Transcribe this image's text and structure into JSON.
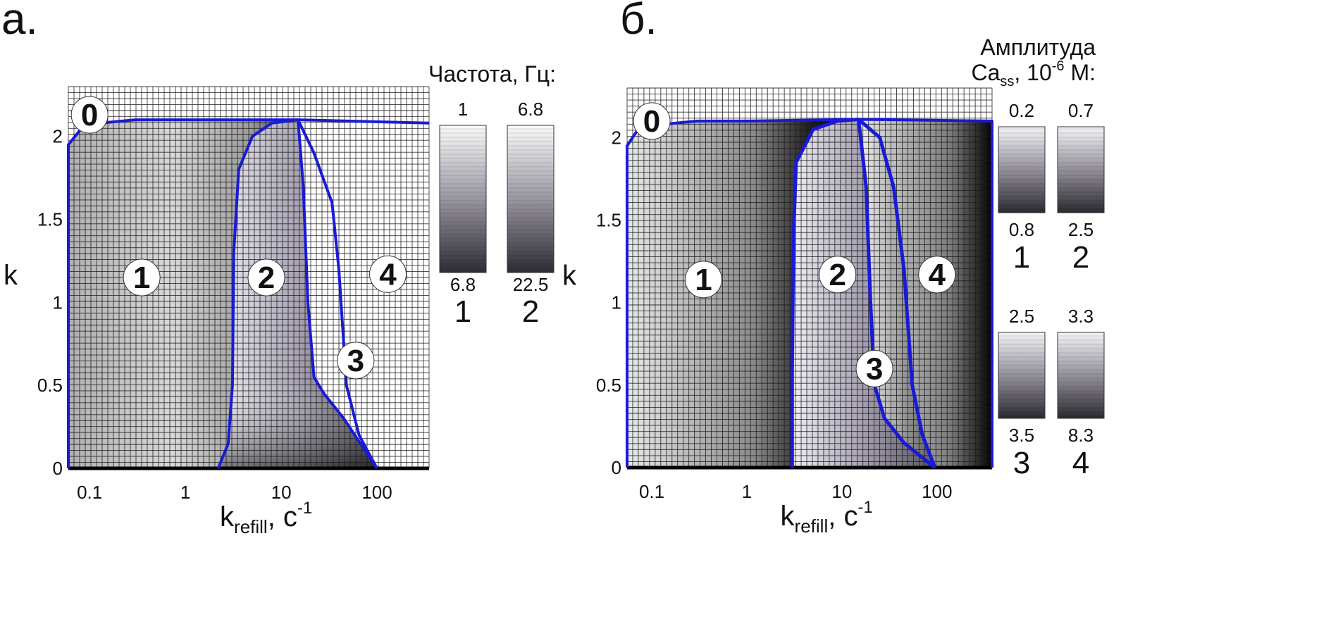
{
  "chart_data": [
    {
      "type": "heatmap",
      "panel_label": "а.",
      "xlabel_main": "k",
      "xlabel_sub": "refill",
      "xlabel_unit": ", с",
      "xlabel_unit_sup": "-1",
      "ylabel": "k",
      "x_scale": "log",
      "xlim": [
        0.06,
        350
      ],
      "ylim": [
        0,
        2.3
      ],
      "x_ticks": [
        {
          "v": 0.1,
          "l": "0.1"
        },
        {
          "v": 1,
          "l": "1"
        },
        {
          "v": 10,
          "l": "10"
        },
        {
          "v": 100,
          "l": "100"
        }
      ],
      "y_ticks": [
        {
          "v": 0,
          "l": "0"
        },
        {
          "v": 0.5,
          "l": "0.5"
        },
        {
          "v": 1,
          "l": "1"
        },
        {
          "v": 1.5,
          "l": "1.5"
        },
        {
          "v": 2,
          "l": "2"
        }
      ],
      "grid": true,
      "regions": [
        {
          "label": "0",
          "x": 0.1,
          "y": 2.13
        },
        {
          "label": "1",
          "x": 0.35,
          "y": 1.15
        },
        {
          "label": "2",
          "x": 7,
          "y": 1.15
        },
        {
          "label": "3",
          "x": 60,
          "y": 0.65
        },
        {
          "label": "4",
          "x": 130,
          "y": 1.17
        }
      ],
      "boundaries": [
        {
          "name": "outer",
          "points": [
            [
              0.06,
              0
            ],
            [
              0.06,
              1.95
            ],
            [
              0.08,
              2.04
            ],
            [
              0.13,
              2.08
            ],
            [
              0.3,
              2.1
            ],
            [
              1,
              2.1
            ],
            [
              15,
              2.1
            ],
            [
              350,
              2.08
            ]
          ]
        },
        {
          "name": "1-2",
          "points": [
            [
              2.2,
              0
            ],
            [
              2.8,
              0.15
            ],
            [
              3.1,
              0.5
            ],
            [
              3.2,
              1.3
            ],
            [
              3.6,
              1.8
            ],
            [
              5,
              2.0
            ],
            [
              8,
              2.08
            ],
            [
              15,
              2.1
            ]
          ]
        },
        {
          "name": "2-3",
          "points": [
            [
              15,
              2.1
            ],
            [
              17,
              1.7
            ],
            [
              19,
              1.0
            ],
            [
              22,
              0.55
            ],
            [
              28,
              0.45
            ],
            [
              45,
              0.3
            ],
            [
              100,
              0
            ]
          ]
        },
        {
          "name": "3-4",
          "points": [
            [
              15,
              2.1
            ],
            [
              22,
              1.9
            ],
            [
              34,
              1.6
            ],
            [
              40,
              1.2
            ],
            [
              48,
              0.5
            ],
            [
              65,
              0.2
            ],
            [
              100,
              0
            ]
          ]
        }
      ],
      "legend_title": "Частота, Гц:",
      "legend": [
        {
          "name": "1",
          "top": "1",
          "bottom": "6.8"
        },
        {
          "name": "2",
          "top": "6.8",
          "bottom": "22.5"
        }
      ]
    },
    {
      "type": "heatmap",
      "panel_label": "б.",
      "xlabel_main": "k",
      "xlabel_sub": "refill",
      "xlabel_unit": ", с",
      "xlabel_unit_sup": "-1",
      "ylabel": "k",
      "x_scale": "log",
      "xlim": [
        0.055,
        380
      ],
      "ylim": [
        0,
        2.3
      ],
      "x_ticks": [
        {
          "v": 0.1,
          "l": "0.1"
        },
        {
          "v": 1,
          "l": "1"
        },
        {
          "v": 10,
          "l": "10"
        },
        {
          "v": 100,
          "l": "100"
        }
      ],
      "y_ticks": [
        {
          "v": 0,
          "l": "0"
        },
        {
          "v": 0.5,
          "l": "0.5"
        },
        {
          "v": 1,
          "l": "1"
        },
        {
          "v": 1.5,
          "l": "1.5"
        },
        {
          "v": 2,
          "l": "2"
        }
      ],
      "grid": true,
      "regions": [
        {
          "label": "0",
          "x": 0.1,
          "y": 2.1
        },
        {
          "label": "1",
          "x": 0.35,
          "y": 1.14
        },
        {
          "label": "2",
          "x": 9,
          "y": 1.17
        },
        {
          "label": "3",
          "x": 22,
          "y": 0.6
        },
        {
          "label": "4",
          "x": 100,
          "y": 1.17
        }
      ],
      "boundaries": [
        {
          "name": "outer",
          "points": [
            [
              0.055,
              0
            ],
            [
              0.055,
              1.95
            ],
            [
              0.07,
              2.04
            ],
            [
              0.13,
              2.08
            ],
            [
              0.3,
              2.1
            ],
            [
              1,
              2.1
            ],
            [
              15,
              2.11
            ],
            [
              380,
              2.1
            ],
            [
              380,
              0
            ]
          ]
        },
        {
          "name": "1-2",
          "points": [
            [
              3,
              0
            ],
            [
              3,
              0.6
            ],
            [
              3.1,
              1.4
            ],
            [
              3.3,
              1.85
            ],
            [
              5,
              2.05
            ],
            [
              9,
              2.1
            ],
            [
              15,
              2.11
            ]
          ]
        },
        {
          "name": "2-3",
          "points": [
            [
              15,
              2.11
            ],
            [
              18,
              1.7
            ],
            [
              20,
              1.0
            ],
            [
              22,
              0.5
            ],
            [
              28,
              0.3
            ],
            [
              45,
              0.15
            ],
            [
              95,
              0
            ]
          ]
        },
        {
          "name": "3-4",
          "points": [
            [
              15,
              2.11
            ],
            [
              25,
              2.0
            ],
            [
              35,
              1.7
            ],
            [
              45,
              1.2
            ],
            [
              55,
              0.5
            ],
            [
              70,
              0.2
            ],
            [
              95,
              0
            ]
          ]
        }
      ],
      "legend_title_line1": "Амплитуда",
      "legend_title_line2_main": "Ca",
      "legend_title_line2_sub": "ss",
      "legend_title_line2_rest": ", 10",
      "legend_title_line2_sup": "-6",
      "legend_title_line2_end": " М:",
      "legend": [
        {
          "name": "1",
          "top": "0.2",
          "bottom": "0.8"
        },
        {
          "name": "2",
          "top": "0.7",
          "bottom": "2.5"
        },
        {
          "name": "3",
          "top": "2.5",
          "bottom": "3.5"
        },
        {
          "name": "4",
          "top": "3.3",
          "bottom": "8.3"
        }
      ]
    }
  ],
  "colors": {
    "boundary": "#1a1ad6",
    "grid": "#1a1a1a",
    "text": "#111111"
  }
}
